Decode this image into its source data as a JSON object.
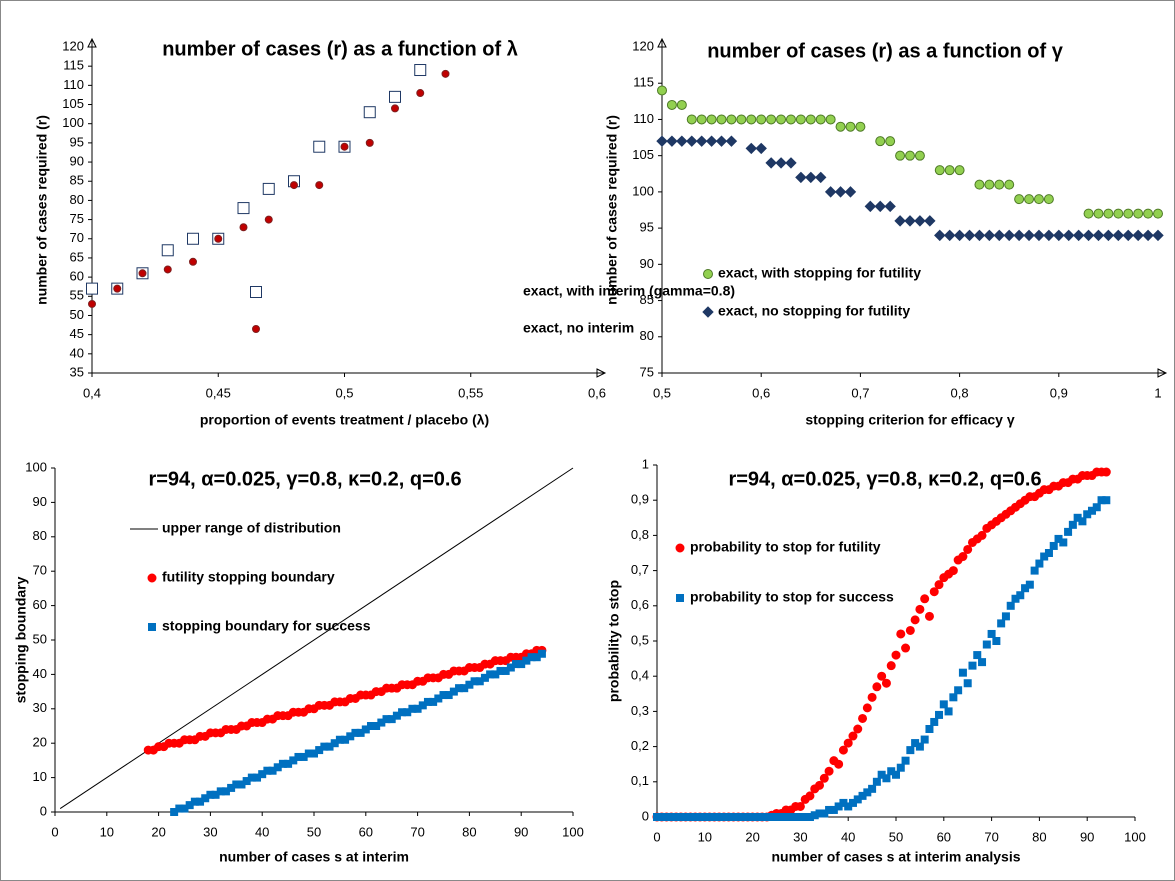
{
  "chart_data": [
    {
      "type": "scatter",
      "title": "number of cases (r) as a function of λ",
      "x_label": "proportion of events treatment / placebo (λ)",
      "y_label": "number of cases required (r)",
      "xlim": [
        0.4,
        0.6
      ],
      "xticks": [
        {
          "value": 0.4,
          "label": "0,4"
        },
        {
          "value": 0.45,
          "label": "0,45"
        },
        {
          "value": 0.5,
          "label": "0,5"
        },
        {
          "value": 0.55,
          "label": "0,55"
        },
        {
          "value": 0.6,
          "label": "0,6"
        }
      ],
      "ylim": [
        35,
        120
      ],
      "yticks": [
        35,
        40,
        45,
        50,
        55,
        60,
        65,
        70,
        75,
        80,
        85,
        90,
        95,
        100,
        105,
        110,
        115,
        120
      ],
      "grid": false,
      "legend": "lower right",
      "series": [
        {
          "name": "exact, with interim (gamma=0.8)",
          "marker": "square",
          "color": "#1f3864",
          "fill": "#ffffff",
          "x": [
            0.4,
            0.41,
            0.42,
            0.43,
            0.44,
            0.45,
            0.46,
            0.47,
            0.48,
            0.49,
            0.5,
            0.51,
            0.52,
            0.53
          ],
          "values": [
            57,
            57,
            61,
            67,
            70,
            70,
            78,
            83,
            85,
            94,
            94,
            103,
            107,
            114
          ]
        },
        {
          "name": "exact, no interim",
          "marker": "circle",
          "color": "#7f1f1f",
          "fill": "#c00000",
          "x": [
            0.4,
            0.41,
            0.42,
            0.43,
            0.44,
            0.45,
            0.46,
            0.47,
            0.48,
            0.49,
            0.5,
            0.51,
            0.52,
            0.53,
            0.54
          ],
          "values": [
            53,
            57,
            61,
            62,
            64,
            70,
            73,
            75,
            84,
            84,
            94,
            95,
            104,
            108,
            113
          ]
        }
      ]
    },
    {
      "type": "scatter",
      "title": "number of cases (r) as a function of γ",
      "x_label": "stopping criterion for efficacy γ",
      "y_label": "number of cases required (r)",
      "xlim": [
        0.5,
        1
      ],
      "xticks": [
        {
          "value": 0.5,
          "label": "0,5"
        },
        {
          "value": 0.6,
          "label": "0,6"
        },
        {
          "value": 0.7,
          "label": "0,7"
        },
        {
          "value": 0.8,
          "label": "0,8"
        },
        {
          "value": 0.9,
          "label": "0,9"
        },
        1
      ],
      "ylim": [
        75,
        120
      ],
      "yticks": [
        75,
        80,
        85,
        90,
        95,
        100,
        105,
        110,
        115,
        120
      ],
      "grid": false,
      "legend": "lower left",
      "series": [
        {
          "name": "exact, with stopping for futility",
          "marker": "circle",
          "color": "#4e7a27",
          "fill": "#92d050",
          "x": [
            0.5,
            0.51,
            0.52,
            0.53,
            0.54,
            0.55,
            0.56,
            0.57,
            0.58,
            0.59,
            0.6,
            0.61,
            0.62,
            0.63,
            0.64,
            0.65,
            0.66,
            0.67,
            0.68,
            0.69,
            0.7,
            0.72,
            0.73,
            0.74,
            0.75,
            0.76,
            0.78,
            0.79,
            0.8,
            0.82,
            0.83,
            0.84,
            0.85,
            0.86,
            0.87,
            0.88,
            0.89,
            0.93,
            0.94,
            0.95,
            0.96,
            0.97,
            0.98,
            0.99,
            1
          ],
          "values": [
            114,
            112,
            112,
            110,
            110,
            110,
            110,
            110,
            110,
            110,
            110,
            110,
            110,
            110,
            110,
            110,
            110,
            110,
            109,
            109,
            109,
            107,
            107,
            105,
            105,
            105,
            103,
            103,
            103,
            101,
            101,
            101,
            101,
            99,
            99,
            99,
            99,
            97,
            97,
            97,
            97,
            97,
            97,
            97,
            97
          ]
        },
        {
          "name": "exact, no stopping for futility",
          "marker": "diamond",
          "color": "#1f3864",
          "fill": "#1f3864",
          "x": [
            0.5,
            0.51,
            0.52,
            0.53,
            0.54,
            0.55,
            0.56,
            0.57,
            0.59,
            0.6,
            0.61,
            0.62,
            0.63,
            0.64,
            0.65,
            0.66,
            0.67,
            0.68,
            0.69,
            0.71,
            0.72,
            0.73,
            0.74,
            0.75,
            0.76,
            0.77,
            0.78,
            0.79,
            0.8,
            0.81,
            0.82,
            0.83,
            0.84,
            0.85,
            0.86,
            0.87,
            0.88,
            0.89,
            0.9,
            0.91,
            0.92,
            0.93,
            0.94,
            0.95,
            0.96,
            0.97,
            0.98,
            0.99,
            1
          ],
          "values": [
            107,
            107,
            107,
            107,
            107,
            107,
            107,
            107,
            106,
            106,
            104,
            104,
            104,
            102,
            102,
            102,
            100,
            100,
            100,
            98,
            98,
            98,
            96,
            96,
            96,
            96,
            94,
            94,
            94,
            94,
            94,
            94,
            94,
            94,
            94,
            94,
            94,
            94,
            94,
            94,
            94,
            94,
            94,
            94,
            94,
            94,
            94,
            94,
            94
          ]
        }
      ]
    },
    {
      "type": "scatter",
      "title": "r=94, α=0.025, γ=0.8, κ=0.2, q=0.6",
      "x_label": "number of cases s at interim",
      "y_label": "stopping boundary",
      "xlim": [
        0,
        100
      ],
      "xticks": [
        0,
        10,
        20,
        30,
        40,
        50,
        60,
        70,
        80,
        90,
        100
      ],
      "ylim": [
        0,
        100
      ],
      "yticks": [
        0,
        10,
        20,
        30,
        40,
        50,
        60,
        70,
        80,
        90,
        100
      ],
      "grid": false,
      "legend": "upper left",
      "series": [
        {
          "name": "upper range of distribution",
          "type": "line",
          "color": "#000000",
          "x": [
            1,
            100
          ],
          "values": [
            1,
            100
          ]
        },
        {
          "name": "futility stopping boundary",
          "marker": "circle",
          "color": "#ff0000",
          "fill": "#ff0000",
          "x": [
            18,
            19,
            20,
            21,
            22,
            23,
            24,
            25,
            26,
            27,
            28,
            29,
            30,
            31,
            32,
            33,
            34,
            35,
            36,
            37,
            38,
            39,
            40,
            41,
            42,
            43,
            44,
            45,
            46,
            47,
            48,
            49,
            50,
            51,
            52,
            53,
            54,
            55,
            56,
            57,
            58,
            59,
            60,
            61,
            62,
            63,
            64,
            65,
            66,
            67,
            68,
            69,
            70,
            71,
            72,
            73,
            74,
            75,
            76,
            77,
            78,
            79,
            80,
            81,
            82,
            83,
            84,
            85,
            86,
            87,
            88,
            89,
            90,
            91,
            92,
            93,
            94
          ],
          "values": [
            18,
            18,
            19,
            19,
            20,
            20,
            20,
            21,
            21,
            21,
            22,
            22,
            23,
            23,
            23,
            24,
            24,
            24,
            25,
            25,
            26,
            26,
            26,
            27,
            27,
            28,
            28,
            28,
            29,
            29,
            29,
            30,
            30,
            31,
            31,
            31,
            32,
            32,
            32,
            33,
            33,
            34,
            34,
            34,
            35,
            35,
            36,
            36,
            36,
            37,
            37,
            37,
            38,
            38,
            39,
            39,
            39,
            40,
            40,
            41,
            41,
            41,
            42,
            42,
            42,
            43,
            43,
            44,
            44,
            44,
            45,
            45,
            45,
            46,
            46,
            47,
            47
          ]
        },
        {
          "name": "stopping boundary for success",
          "marker": "square",
          "color": "#0070c0",
          "fill": "#0070c0",
          "x": [
            23,
            24,
            25,
            26,
            27,
            28,
            29,
            30,
            31,
            32,
            33,
            34,
            35,
            36,
            37,
            38,
            39,
            40,
            41,
            42,
            43,
            44,
            45,
            46,
            47,
            48,
            49,
            50,
            51,
            52,
            53,
            54,
            55,
            56,
            57,
            58,
            59,
            60,
            61,
            62,
            63,
            64,
            65,
            66,
            67,
            68,
            69,
            70,
            71,
            72,
            73,
            74,
            75,
            76,
            77,
            78,
            79,
            80,
            81,
            82,
            83,
            84,
            85,
            86,
            87,
            88,
            89,
            90,
            91,
            92,
            93,
            94
          ],
          "values": [
            0,
            1,
            1,
            2,
            3,
            3,
            4,
            5,
            5,
            6,
            6,
            7,
            8,
            8,
            9,
            10,
            10,
            11,
            12,
            12,
            13,
            14,
            14,
            15,
            16,
            16,
            17,
            17,
            18,
            19,
            19,
            20,
            21,
            21,
            22,
            23,
            23,
            24,
            25,
            25,
            26,
            27,
            27,
            28,
            29,
            29,
            30,
            30,
            31,
            32,
            32,
            33,
            34,
            34,
            35,
            36,
            36,
            37,
            38,
            38,
            39,
            40,
            40,
            41,
            41,
            42,
            43,
            43,
            44,
            45,
            45,
            46
          ]
        }
      ]
    },
    {
      "type": "scatter",
      "title": "r=94, α=0.025, γ=0.8, κ=0.2, q=0.6",
      "x_label": "number of cases s at interim analysis",
      "y_label": "probability to stop",
      "xlim": [
        0,
        100
      ],
      "xticks": [
        0,
        10,
        20,
        30,
        40,
        50,
        60,
        70,
        80,
        90,
        100
      ],
      "ylim": [
        0,
        1
      ],
      "yticks": [
        0,
        {
          "value": 0.1,
          "label": "0,1"
        },
        {
          "value": 0.2,
          "label": "0,2"
        },
        {
          "value": 0.3,
          "label": "0,3"
        },
        {
          "value": 0.4,
          "label": "0,4"
        },
        {
          "value": 0.5,
          "label": "0,5"
        },
        {
          "value": 0.6,
          "label": "0,6"
        },
        {
          "value": 0.7,
          "label": "0,7"
        },
        {
          "value": 0.8,
          "label": "0,8"
        },
        {
          "value": 0.9,
          "label": "0,9"
        },
        1
      ],
      "grid": false,
      "legend": "upper left",
      "x": [
        0,
        1,
        2,
        3,
        4,
        5,
        6,
        7,
        8,
        9,
        10,
        11,
        12,
        13,
        14,
        15,
        16,
        17,
        18,
        19,
        20,
        21,
        22,
        23,
        24,
        25,
        26,
        27,
        28,
        29,
        30,
        31,
        32,
        33,
        34,
        35,
        36,
        37,
        38,
        39,
        40,
        41,
        42,
        43,
        44,
        45,
        46,
        47,
        48,
        49,
        50,
        51,
        52,
        53,
        54,
        55,
        56,
        57,
        58,
        59,
        60,
        61,
        62,
        63,
        64,
        65,
        66,
        67,
        68,
        69,
        70,
        71,
        72,
        73,
        74,
        75,
        76,
        77,
        78,
        79,
        80,
        81,
        82,
        83,
        84,
        85,
        86,
        87,
        88,
        89,
        90,
        91,
        92,
        93,
        94
      ],
      "series": [
        {
          "name": "probability to stop for futility",
          "marker": "circle",
          "color": "#ff0000",
          "fill": "#ff0000",
          "values": [
            0,
            0,
            0,
            0,
            0,
            0,
            0,
            0,
            0,
            0,
            0,
            0,
            0,
            0,
            0,
            0,
            0,
            0,
            0,
            0,
            0,
            0,
            0,
            0,
            0.005,
            0.01,
            0.01,
            0.02,
            0.02,
            0.03,
            0.03,
            0.05,
            0.06,
            0.08,
            0.09,
            0.11,
            0.13,
            0.16,
            0.15,
            0.19,
            0.21,
            0.23,
            0.25,
            0.28,
            0.31,
            0.34,
            0.37,
            0.4,
            0.38,
            0.43,
            0.46,
            0.52,
            0.48,
            0.53,
            0.56,
            0.59,
            0.62,
            0.57,
            0.64,
            0.66,
            0.68,
            0.69,
            0.7,
            0.73,
            0.74,
            0.76,
            0.78,
            0.79,
            0.8,
            0.82,
            0.83,
            0.84,
            0.85,
            0.86,
            0.87,
            0.88,
            0.89,
            0.9,
            0.91,
            0.91,
            0.92,
            0.93,
            0.93,
            0.94,
            0.94,
            0.95,
            0.95,
            0.96,
            0.96,
            0.97,
            0.97,
            0.97,
            0.98,
            0.98,
            0.98
          ]
        },
        {
          "name": "probability to stop for success",
          "marker": "square",
          "color": "#0070c0",
          "fill": "#0070c0",
          "values": [
            0,
            0,
            0,
            0,
            0,
            0,
            0,
            0,
            0,
            0,
            0,
            0,
            0,
            0,
            0,
            0,
            0,
            0,
            0,
            0,
            0,
            0,
            0,
            0,
            0,
            0,
            0,
            0,
            0,
            0,
            0,
            0,
            0,
            0.005,
            0.01,
            0.01,
            0.02,
            0.02,
            0.03,
            0.04,
            0.03,
            0.04,
            0.05,
            0.06,
            0.07,
            0.08,
            0.1,
            0.12,
            0.11,
            0.13,
            0.12,
            0.14,
            0.16,
            0.19,
            0.21,
            0.2,
            0.22,
            0.25,
            0.27,
            0.29,
            0.32,
            0.3,
            0.34,
            0.36,
            0.41,
            0.38,
            0.43,
            0.46,
            0.44,
            0.49,
            0.52,
            0.5,
            0.55,
            0.57,
            0.6,
            0.62,
            0.63,
            0.65,
            0.66,
            0.7,
            0.72,
            0.74,
            0.75,
            0.77,
            0.79,
            0.78,
            0.81,
            0.83,
            0.85,
            0.84,
            0.86,
            0.87,
            0.88,
            0.9,
            0.9
          ]
        }
      ]
    }
  ]
}
